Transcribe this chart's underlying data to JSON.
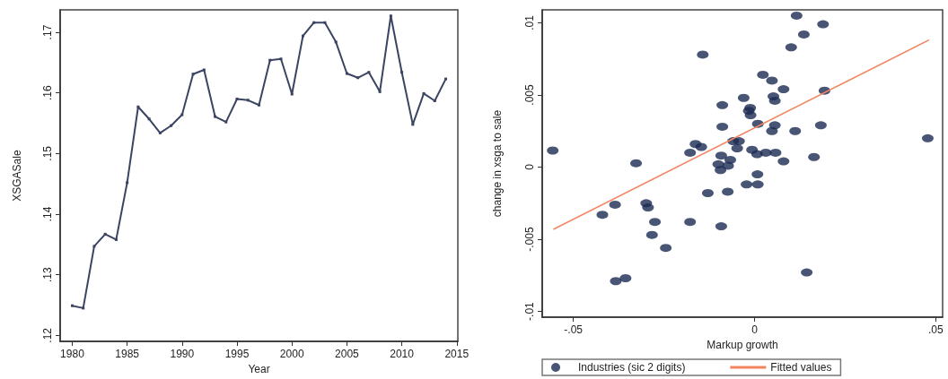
{
  "chart_data": [
    {
      "type": "line",
      "xlabel": "Year",
      "ylabel": "XSGASale",
      "color": "#3b4562",
      "marker": "square",
      "grid": false,
      "x": [
        1980,
        1981,
        1982,
        1983,
        1984,
        1985,
        1986,
        1987,
        1988,
        1989,
        1990,
        1991,
        1992,
        1993,
        1994,
        1995,
        1996,
        1997,
        1998,
        1999,
        2000,
        2001,
        2002,
        2003,
        2004,
        2005,
        2006,
        2007,
        2008,
        2009,
        2010,
        2011,
        2012,
        2013,
        2014
      ],
      "values": [
        0.1249,
        0.1245,
        0.1347,
        0.1367,
        0.1358,
        0.1452,
        0.1577,
        0.1557,
        0.1534,
        0.1546,
        0.1564,
        0.1631,
        0.1638,
        0.1561,
        0.1552,
        0.159,
        0.1588,
        0.158,
        0.1654,
        0.1656,
        0.1598,
        0.1694,
        0.1716,
        0.1716,
        0.1684,
        0.1632,
        0.1625,
        0.1634,
        0.1602,
        0.1727,
        0.1634,
        0.1548,
        0.1599,
        0.1587,
        0.1623
      ],
      "xlim": [
        1978.9,
        2015.1
      ],
      "xticks": [
        1980,
        1985,
        1990,
        1995,
        2000,
        2005,
        2010,
        2015
      ],
      "ylim": [
        0.119,
        0.1737
      ],
      "yticks": [
        {
          "value": 0.12,
          "label": ".12"
        },
        {
          "value": 0.13,
          "label": ".13"
        },
        {
          "value": 0.14,
          "label": ".14"
        },
        {
          "value": 0.15,
          "label": ".15"
        },
        {
          "value": 0.16,
          "label": ".16"
        },
        {
          "value": 0.17,
          "label": ".17"
        }
      ]
    },
    {
      "type": "scatter",
      "xlabel": "Markup growth",
      "ylabel": "change in xsga to sale",
      "grid": false,
      "legend": "bottom",
      "marker": "circle",
      "xlim": [
        -0.0586,
        0.0519
      ],
      "xticks": [
        {
          "value": -0.05,
          "label": "-.05"
        },
        0,
        {
          "value": 0.05,
          "label": ".05"
        }
      ],
      "ylim": [
        -0.0104,
        0.0109
      ],
      "yticks": [
        {
          "value": -0.01,
          "label": "-.01"
        },
        {
          "value": -0.005,
          "label": "-.005"
        },
        0,
        {
          "value": 0.005,
          "label": ".005"
        },
        {
          "value": 0.01,
          "label": ".01"
        }
      ],
      "series": [
        {
          "name": "Industries (sic 2 digits)",
          "type": "scatter",
          "color": "#1c2b52",
          "x": [
            -0.0557,
            -0.0327,
            -0.0143,
            0.0116,
            0.0189,
            0.0136,
            0.0101,
            0.0023,
            0.0048,
            0.008,
            0.0193,
            -0.003,
            0.0052,
            0.0056,
            -0.0089,
            -0.0012,
            -0.0016,
            -0.0011,
            0.0009,
            -0.0089,
            0.0056,
            0.0183,
            0.0048,
            0.0112,
            0.0478,
            -0.0059,
            -0.0043,
            -0.0163,
            -0.0147,
            -0.0178,
            -0.0048,
            -0.0007,
            0.0007,
            0.0031,
            0.0058,
            0.0164,
            0.008,
            -0.0092,
            -0.0067,
            -0.01,
            -0.0073,
            -0.0094,
            0.0008,
            -0.0022,
            0.0009,
            -0.0129,
            -0.0074,
            -0.0385,
            -0.042,
            -0.0299,
            -0.0294,
            -0.0275,
            -0.0178,
            -0.0092,
            -0.0283,
            -0.0245,
            0.0144,
            -0.0383,
            -0.0356
          ],
          "values": [
            0.00115,
            0.00027,
            0.0078,
            0.0105,
            0.0099,
            0.0092,
            0.0083,
            0.0064,
            0.006,
            0.0054,
            0.0053,
            0.0048,
            0.0049,
            0.0046,
            0.0043,
            0.0041,
            0.0039,
            0.0036,
            0.003,
            0.0028,
            0.0029,
            0.0029,
            0.0025,
            0.0025,
            0.002,
            0.0018,
            0.0018,
            0.0016,
            0.0014,
            0.001,
            0.0013,
            0.0012,
            0.0009,
            0.001,
            0.001,
            0.0007,
            0.0004,
            0.0008,
            0.0005,
            0.0002,
            0.0001,
            -0.0002,
            -0.0005,
            -0.0012,
            -0.0012,
            -0.0018,
            -0.0017,
            -0.0026,
            -0.0033,
            -0.0025,
            -0.0028,
            -0.0038,
            -0.0038,
            -0.0041,
            -0.0047,
            -0.0056,
            -0.0073,
            -0.0079,
            -0.0077
          ]
        },
        {
          "name": "Fitted values",
          "type": "line",
          "color": "#f4845f",
          "marker": "none",
          "x": [
            -0.0554,
            0.048
          ],
          "values": [
            -0.0043,
            0.0088
          ]
        }
      ]
    }
  ]
}
